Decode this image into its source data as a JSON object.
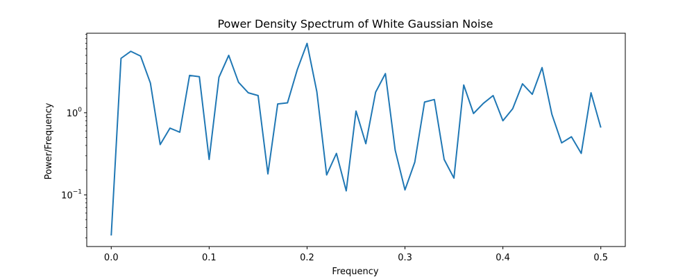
{
  "chart_data": {
    "type": "line",
    "title": "Power Density Spectrum of White Gaussian Noise",
    "xlabel": "Frequency",
    "ylabel": "Power/Frequency",
    "xlim": [
      -0.025,
      0.525
    ],
    "ylim": [
      0.0235,
      9.3
    ],
    "yscale": "log",
    "grid": false,
    "legend": "none",
    "color": "#1f77b4",
    "x_ticks": [
      "0.0",
      "0.1",
      "0.2",
      "0.3",
      "0.4",
      "0.5"
    ],
    "y_ticks": [
      {
        "value": 0.1,
        "base": "10",
        "exp": "−1"
      },
      {
        "value": 1,
        "base": "10",
        "exp": "0"
      }
    ],
    "series": [
      {
        "x": [
          0.0,
          0.01,
          0.02,
          0.03,
          0.04,
          0.05,
          0.06,
          0.07,
          0.08,
          0.09,
          0.1,
          0.11,
          0.12,
          0.13,
          0.14,
          0.15,
          0.16,
          0.17,
          0.18,
          0.19,
          0.2,
          0.21,
          0.22,
          0.23,
          0.24,
          0.25,
          0.26,
          0.27,
          0.28,
          0.29,
          0.3,
          0.31,
          0.32,
          0.33,
          0.34,
          0.35,
          0.36,
          0.37,
          0.38,
          0.39,
          0.4,
          0.41,
          0.42,
          0.43,
          0.44,
          0.45,
          0.46,
          0.47,
          0.48,
          0.49,
          0.5
        ],
        "y": [
          0.032,
          4.6,
          5.6,
          4.9,
          2.3,
          0.41,
          0.65,
          0.58,
          2.85,
          2.75,
          0.27,
          2.7,
          5.0,
          2.35,
          1.75,
          1.62,
          0.18,
          1.28,
          1.32,
          3.35,
          7.0,
          1.8,
          0.175,
          0.32,
          0.112,
          1.05,
          0.42,
          1.78,
          3.0,
          0.35,
          0.115,
          0.25,
          1.35,
          1.45,
          0.27,
          0.16,
          2.18,
          0.98,
          1.3,
          1.62,
          0.8,
          1.12,
          2.25,
          1.68,
          3.55,
          0.96,
          0.43,
          0.51,
          0.32,
          1.75,
          0.66
        ]
      }
    ]
  }
}
